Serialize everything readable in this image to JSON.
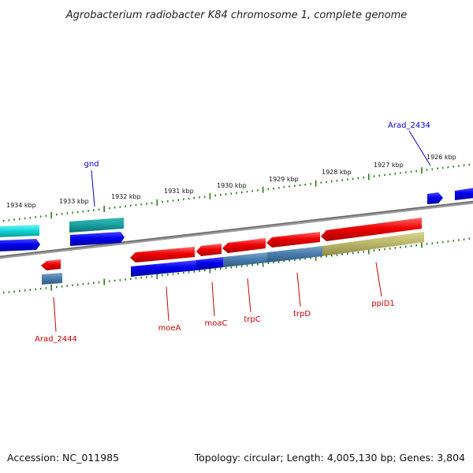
{
  "title": "Agrobacterium radiobacter K84 chromosome 1, complete genome",
  "accession": "Accession: NC_011985",
  "summary": "Topology: circular; Length: 4,005,130 bp; Genes: 3,804",
  "colors": {
    "label_red": "#cc0000",
    "label_blue": "#0000cc",
    "tick_green": "#2a7a1a",
    "backbone": "#7a7a7a"
  },
  "ticks": [
    {
      "label": "1934 kbp"
    },
    {
      "label": "1933 kbp"
    },
    {
      "label": "1932 kbp"
    },
    {
      "label": "1931 kbp"
    },
    {
      "label": "1930 kbp"
    },
    {
      "label": "1929 kbp"
    },
    {
      "label": "1928 kbp"
    },
    {
      "label": "1927 kbp"
    },
    {
      "label": "1926 kbp"
    }
  ],
  "gene_labels": [
    {
      "text": "gnd",
      "color": "#0000cc"
    },
    {
      "text": "Arad_2434",
      "color": "#0000cc"
    },
    {
      "text": "Arad_2444",
      "color": "#cc0000"
    },
    {
      "text": "moeA",
      "color": "#cc0000"
    },
    {
      "text": "moaC",
      "color": "#cc0000"
    },
    {
      "text": "trpC",
      "color": "#cc0000"
    },
    {
      "text": "trpD",
      "color": "#cc0000"
    },
    {
      "text": "ppiD1",
      "color": "#cc0000"
    }
  ]
}
